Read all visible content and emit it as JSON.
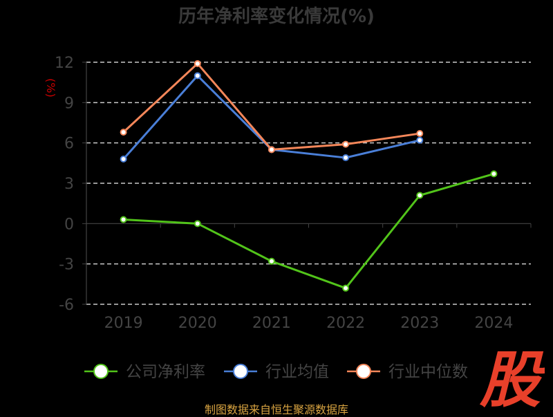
{
  "chart_data": {
    "type": "line",
    "title": "历年净利率变化情况(%)",
    "ylabel": "(%)",
    "categories": [
      "2019",
      "2020",
      "2021",
      "2022",
      "2023",
      "2024"
    ],
    "ylim": [
      -6,
      12
    ],
    "yticks": [
      12,
      9,
      6,
      3,
      0,
      -3,
      -6
    ],
    "grid": true,
    "legend_position": "bottom",
    "series": [
      {
        "name": "公司净利率",
        "color": "#52c41a",
        "values": [
          0.3,
          0.0,
          -2.8,
          -4.8,
          2.1,
          3.7
        ]
      },
      {
        "name": "行业均值",
        "color": "#4a7fd8",
        "values": [
          4.8,
          11.0,
          5.5,
          4.9,
          6.2,
          null
        ]
      },
      {
        "name": "行业中位数",
        "color": "#f5875a",
        "values": [
          6.8,
          11.9,
          5.5,
          5.9,
          6.7,
          null
        ]
      }
    ]
  },
  "logo_text": "股",
  "source": "制图数据来自恒生聚源数据库",
  "colors": {
    "background": "#000000",
    "grid": "#cccccc",
    "axis_text": "#444444",
    "ylabel": "#cc0000",
    "logo": "#e8402a",
    "source": "#d9a441"
  }
}
